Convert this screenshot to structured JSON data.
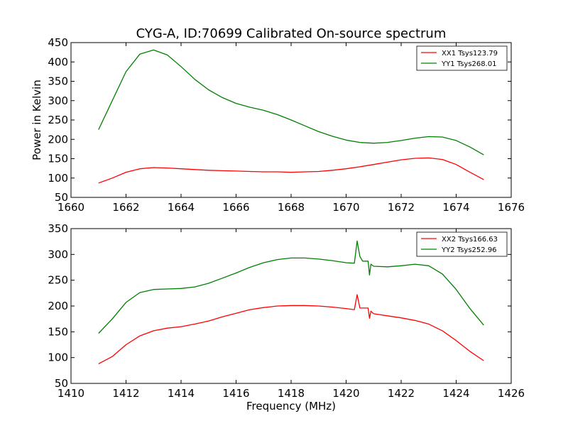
{
  "figure": {
    "title": "CYG-A, ID:70699 Calibrated On-source spectrum"
  },
  "chart_data": [
    {
      "type": "line",
      "xlabel": "",
      "ylabel": "Power in Kelvin",
      "xlim": [
        1660,
        1676
      ],
      "ylim": [
        50,
        450
      ],
      "xticks": [
        1660,
        1662,
        1664,
        1666,
        1668,
        1670,
        1672,
        1674,
        1676
      ],
      "yticks": [
        50,
        100,
        150,
        200,
        250,
        300,
        350,
        400,
        450
      ],
      "xtick_labels": [
        "1660",
        "1662",
        "1664",
        "1666",
        "1668",
        "1670",
        "1672",
        "1674",
        "1676"
      ],
      "ytick_labels": [
        "50",
        "100",
        "150",
        "200",
        "250",
        "300",
        "350",
        "400",
        "450"
      ],
      "legend_position": "top-right",
      "series": [
        {
          "name": "XX1 Tsys123.79",
          "color": "#ff0000",
          "x": [
            1661.0,
            1661.5,
            1662.0,
            1662.5,
            1663.0,
            1663.5,
            1664.0,
            1664.5,
            1665.0,
            1665.5,
            1666.0,
            1666.5,
            1667.0,
            1667.5,
            1668.0,
            1668.5,
            1669.0,
            1669.5,
            1670.0,
            1670.5,
            1671.0,
            1671.5,
            1672.0,
            1672.5,
            1673.0,
            1673.5,
            1674.0,
            1674.5,
            1675.0
          ],
          "y": [
            87,
            100,
            115,
            124,
            127,
            126,
            124,
            122,
            120,
            119,
            118,
            117,
            116,
            116,
            115,
            116,
            117,
            120,
            124,
            129,
            135,
            141,
            147,
            151,
            152,
            148,
            135,
            115,
            96
          ]
        },
        {
          "name": "YY1 Tsys268.01",
          "color": "#008000",
          "x": [
            1661.0,
            1661.5,
            1662.0,
            1662.5,
            1663.0,
            1663.5,
            1664.0,
            1664.5,
            1665.0,
            1665.5,
            1666.0,
            1666.5,
            1667.0,
            1667.5,
            1668.0,
            1668.5,
            1669.0,
            1669.5,
            1670.0,
            1670.5,
            1671.0,
            1671.5,
            1672.0,
            1672.5,
            1673.0,
            1673.5,
            1674.0,
            1674.5,
            1675.0
          ],
          "y": [
            225,
            300,
            375,
            420,
            431,
            418,
            388,
            355,
            328,
            308,
            293,
            283,
            275,
            264,
            250,
            235,
            220,
            208,
            198,
            192,
            190,
            192,
            197,
            203,
            207,
            206,
            197,
            180,
            160
          ]
        }
      ]
    },
    {
      "type": "line",
      "xlabel": "Frequency (MHz)",
      "ylabel": "",
      "xlim": [
        1410,
        1426
      ],
      "ylim": [
        50,
        350
      ],
      "xticks": [
        1410,
        1412,
        1414,
        1416,
        1418,
        1420,
        1422,
        1424,
        1426
      ],
      "yticks": [
        50,
        100,
        150,
        200,
        250,
        300,
        350
      ],
      "xtick_labels": [
        "1410",
        "1412",
        "1414",
        "1416",
        "1418",
        "1420",
        "1422",
        "1424",
        "1426"
      ],
      "ytick_labels": [
        "50",
        "100",
        "150",
        "200",
        "250",
        "300",
        "350"
      ],
      "legend_position": "top-right",
      "series": [
        {
          "name": "XX2 Tsys166.63",
          "color": "#ff0000",
          "x": [
            1411.0,
            1411.5,
            1412.0,
            1412.5,
            1413.0,
            1413.5,
            1414.0,
            1414.5,
            1415.0,
            1415.5,
            1416.0,
            1416.5,
            1417.0,
            1417.5,
            1418.0,
            1418.5,
            1419.0,
            1419.5,
            1420.0,
            1420.3,
            1420.4,
            1420.5,
            1420.6,
            1420.8,
            1420.85,
            1420.9,
            1421.0,
            1421.5,
            1422.0,
            1422.5,
            1423.0,
            1423.5,
            1424.0,
            1424.5,
            1425.0
          ],
          "y": [
            88,
            102,
            125,
            142,
            152,
            157,
            160,
            165,
            171,
            179,
            186,
            193,
            197,
            200,
            201,
            201,
            200,
            198,
            195,
            193,
            222,
            196,
            196,
            196,
            176,
            190,
            185,
            181,
            177,
            172,
            165,
            152,
            133,
            112,
            94
          ]
        },
        {
          "name": "YY2 Tsys252.96",
          "color": "#008000",
          "x": [
            1411.0,
            1411.5,
            1412.0,
            1412.5,
            1413.0,
            1413.5,
            1414.0,
            1414.5,
            1415.0,
            1415.5,
            1416.0,
            1416.5,
            1417.0,
            1417.5,
            1418.0,
            1418.5,
            1419.0,
            1419.5,
            1420.0,
            1420.3,
            1420.4,
            1420.5,
            1420.6,
            1420.8,
            1420.85,
            1420.9,
            1421.0,
            1421.5,
            1422.0,
            1422.5,
            1423.0,
            1423.5,
            1424.0,
            1424.5,
            1425.0
          ],
          "y": [
            147,
            175,
            207,
            226,
            232,
            233,
            234,
            237,
            244,
            254,
            264,
            275,
            284,
            290,
            293,
            293,
            291,
            288,
            284,
            283,
            326,
            296,
            287,
            287,
            260,
            281,
            277,
            276,
            278,
            281,
            278,
            262,
            232,
            195,
            163
          ]
        }
      ]
    }
  ]
}
